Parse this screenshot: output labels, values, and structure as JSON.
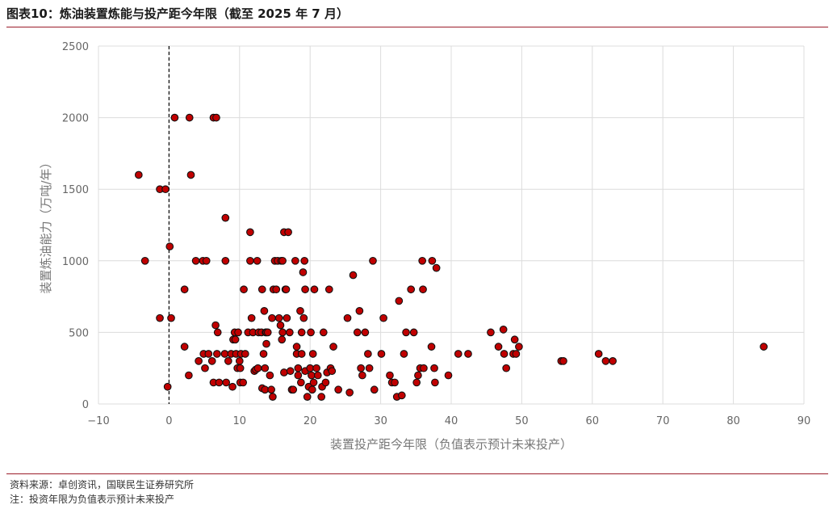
{
  "title": "图表10：炼油装置炼能与投产距今年限（截至 2025 年 7 月）",
  "footer": {
    "source": "资料来源：卓创资讯，国联民生证券研究所",
    "note": "注：投资年限为负值表示预计未来投产"
  },
  "chart_data": {
    "type": "scatter",
    "xlabel": "装置投产距今年限（负值表示预计未来投产）",
    "ylabel": "装置炼油能力（万吨/年）",
    "xlim": [
      -10,
      90
    ],
    "ylim": [
      0,
      2500
    ],
    "xticks": [
      "−10",
      "0",
      "10",
      "20",
      "30",
      "40",
      "50",
      "60",
      "70",
      "80",
      "90"
    ],
    "yticks": [
      "0",
      "500",
      "1000",
      "1500",
      "2000",
      "2500"
    ],
    "grid": true,
    "reference_line_x": 0,
    "marker_color": "#c00000",
    "points": [
      [
        -4.3,
        1600
      ],
      [
        -3.4,
        1000
      ],
      [
        -1.3,
        1500
      ],
      [
        -0.5,
        1500
      ],
      [
        -1.3,
        600
      ],
      [
        0.1,
        1100
      ],
      [
        0.3,
        600
      ],
      [
        -0.2,
        120
      ],
      [
        0.8,
        2000
      ],
      [
        2.9,
        2000
      ],
      [
        6.3,
        2000
      ],
      [
        6.7,
        2000
      ],
      [
        3.1,
        1600
      ],
      [
        8.0,
        1300
      ],
      [
        2.2,
        800
      ],
      [
        3.8,
        1000
      ],
      [
        4.8,
        1000
      ],
      [
        5.3,
        1000
      ],
      [
        8.0,
        1000
      ],
      [
        2.2,
        400
      ],
      [
        2.8,
        200
      ],
      [
        4.2,
        300
      ],
      [
        4.9,
        350
      ],
      [
        5.1,
        250
      ],
      [
        5.6,
        350
      ],
      [
        6.1,
        300
      ],
      [
        6.3,
        150
      ],
      [
        6.6,
        550
      ],
      [
        6.9,
        500
      ],
      [
        7.1,
        150
      ],
      [
        6.8,
        350
      ],
      [
        7.9,
        350
      ],
      [
        8.1,
        150
      ],
      [
        8.4,
        300
      ],
      [
        8.8,
        350
      ],
      [
        9.1,
        450
      ],
      [
        9.3,
        500
      ],
      [
        9.5,
        350
      ],
      [
        9.7,
        250
      ],
      [
        9.4,
        450
      ],
      [
        9.8,
        500
      ],
      [
        10.0,
        300
      ],
      [
        10.1,
        250
      ],
      [
        9.0,
        120
      ],
      [
        10.1,
        150
      ],
      [
        10.2,
        350
      ],
      [
        10.5,
        150
      ],
      [
        10.6,
        800
      ],
      [
        10.8,
        350
      ],
      [
        11.2,
        500
      ],
      [
        11.5,
        1200
      ],
      [
        11.5,
        1000
      ],
      [
        11.7,
        600
      ],
      [
        11.9,
        500
      ],
      [
        12.1,
        230
      ],
      [
        12.3,
        240
      ],
      [
        12.5,
        1000
      ],
      [
        12.6,
        250
      ],
      [
        12.7,
        500
      ],
      [
        13.1,
        500
      ],
      [
        13.2,
        800
      ],
      [
        13.4,
        350
      ],
      [
        13.5,
        650
      ],
      [
        13.7,
        500
      ],
      [
        13.8,
        420
      ],
      [
        13.6,
        250
      ],
      [
        13.2,
        110
      ],
      [
        13.6,
        100
      ],
      [
        13.8,
        500
      ],
      [
        14.0,
        500
      ],
      [
        14.3,
        200
      ],
      [
        14.5,
        100
      ],
      [
        14.7,
        50
      ],
      [
        14.8,
        800
      ],
      [
        14.6,
        600
      ],
      [
        15.0,
        1000
      ],
      [
        15.2,
        800
      ],
      [
        15.4,
        1000
      ],
      [
        15.6,
        600
      ],
      [
        15.8,
        550
      ],
      [
        15.9,
        1000
      ],
      [
        16.1,
        500
      ],
      [
        16.0,
        450
      ],
      [
        16.1,
        1000
      ],
      [
        16.3,
        1200
      ],
      [
        16.5,
        800
      ],
      [
        16.7,
        600
      ],
      [
        16.6,
        800
      ],
      [
        16.3,
        220
      ],
      [
        16.9,
        1200
      ],
      [
        17.1,
        500
      ],
      [
        17.2,
        230
      ],
      [
        17.4,
        100
      ],
      [
        17.6,
        100
      ],
      [
        17.9,
        1000
      ],
      [
        18.1,
        400
      ],
      [
        18.1,
        350
      ],
      [
        18.3,
        250
      ],
      [
        18.3,
        200
      ],
      [
        18.6,
        650
      ],
      [
        18.7,
        150
      ],
      [
        18.8,
        350
      ],
      [
        18.8,
        500
      ],
      [
        19.0,
        920
      ],
      [
        19.1,
        600
      ],
      [
        19.3,
        230
      ],
      [
        19.2,
        1000
      ],
      [
        19.3,
        800
      ],
      [
        19.6,
        50
      ],
      [
        19.8,
        120
      ],
      [
        20.0,
        250
      ],
      [
        20.1,
        500
      ],
      [
        20.2,
        200
      ],
      [
        20.3,
        100
      ],
      [
        20.4,
        350
      ],
      [
        20.5,
        150
      ],
      [
        20.6,
        800
      ],
      [
        20.9,
        250
      ],
      [
        21.1,
        200
      ],
      [
        21.7,
        120
      ],
      [
        21.6,
        50
      ],
      [
        21.9,
        500
      ],
      [
        22.2,
        150
      ],
      [
        22.4,
        220
      ],
      [
        22.7,
        800
      ],
      [
        22.9,
        250
      ],
      [
        23.1,
        230
      ],
      [
        23.3,
        400
      ],
      [
        24.0,
        100
      ],
      [
        25.3,
        600
      ],
      [
        25.6,
        80
      ],
      [
        26.1,
        900
      ],
      [
        26.7,
        500
      ],
      [
        27.0,
        650
      ],
      [
        27.2,
        250
      ],
      [
        27.4,
        200
      ],
      [
        27.8,
        500
      ],
      [
        28.2,
        350
      ],
      [
        28.4,
        250
      ],
      [
        28.9,
        1000
      ],
      [
        29.1,
        100
      ],
      [
        30.1,
        350
      ],
      [
        30.4,
        600
      ],
      [
        31.3,
        200
      ],
      [
        31.6,
        150
      ],
      [
        32.0,
        150
      ],
      [
        32.3,
        50
      ],
      [
        32.6,
        720
      ],
      [
        33.0,
        60
      ],
      [
        33.3,
        350
      ],
      [
        33.6,
        500
      ],
      [
        34.3,
        800
      ],
      [
        34.7,
        500
      ],
      [
        35.1,
        150
      ],
      [
        35.3,
        200
      ],
      [
        35.6,
        250
      ],
      [
        35.9,
        1000
      ],
      [
        36.0,
        800
      ],
      [
        36.1,
        250
      ],
      [
        37.2,
        400
      ],
      [
        37.3,
        1000
      ],
      [
        37.6,
        250
      ],
      [
        37.7,
        150
      ],
      [
        37.9,
        950
      ],
      [
        39.6,
        200
      ],
      [
        41.0,
        350
      ],
      [
        42.4,
        350
      ],
      [
        45.6,
        500
      ],
      [
        46.7,
        400
      ],
      [
        47.4,
        520
      ],
      [
        47.5,
        350
      ],
      [
        47.8,
        250
      ],
      [
        48.8,
        350
      ],
      [
        49.0,
        450
      ],
      [
        49.2,
        350
      ],
      [
        49.6,
        400
      ],
      [
        55.6,
        300
      ],
      [
        55.9,
        300
      ],
      [
        60.9,
        350
      ],
      [
        61.9,
        300
      ],
      [
        62.9,
        300
      ],
      [
        84.3,
        400
      ]
    ]
  }
}
